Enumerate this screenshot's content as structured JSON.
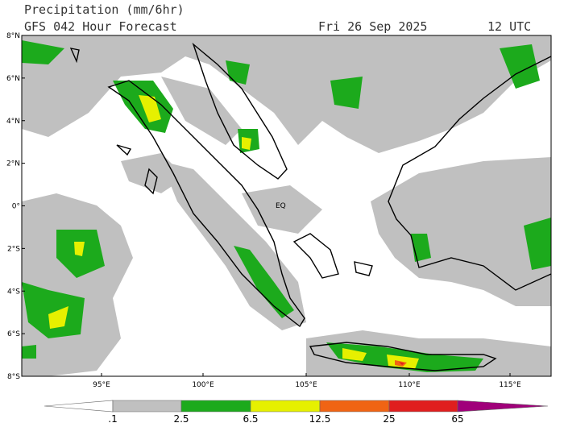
{
  "header": {
    "title": "Precipitation (mm/6hr)",
    "subtitle": "GFS 042 Hour Forecast",
    "date": "Fri 26 Sep 2025",
    "time": "12 UTC"
  },
  "map": {
    "lat_labels": [
      "8°N",
      "6°N",
      "4°N",
      "2°N",
      "0°",
      "2°S",
      "4°S",
      "6°S",
      "8°S"
    ],
    "lon_labels": [
      "95°E",
      "100°E",
      "105°E",
      "110°E",
      "115°E"
    ],
    "eq_label": "EQ"
  },
  "colorbar": {
    "labels": [
      ".1",
      "2.5",
      "6.5",
      "12.5",
      "25",
      "65"
    ],
    "colors": [
      "#ffffff",
      "#c0c0c0",
      "#1caa1c",
      "#e6f000",
      "#f06414",
      "#e01e1e",
      "#a0007a"
    ]
  }
}
